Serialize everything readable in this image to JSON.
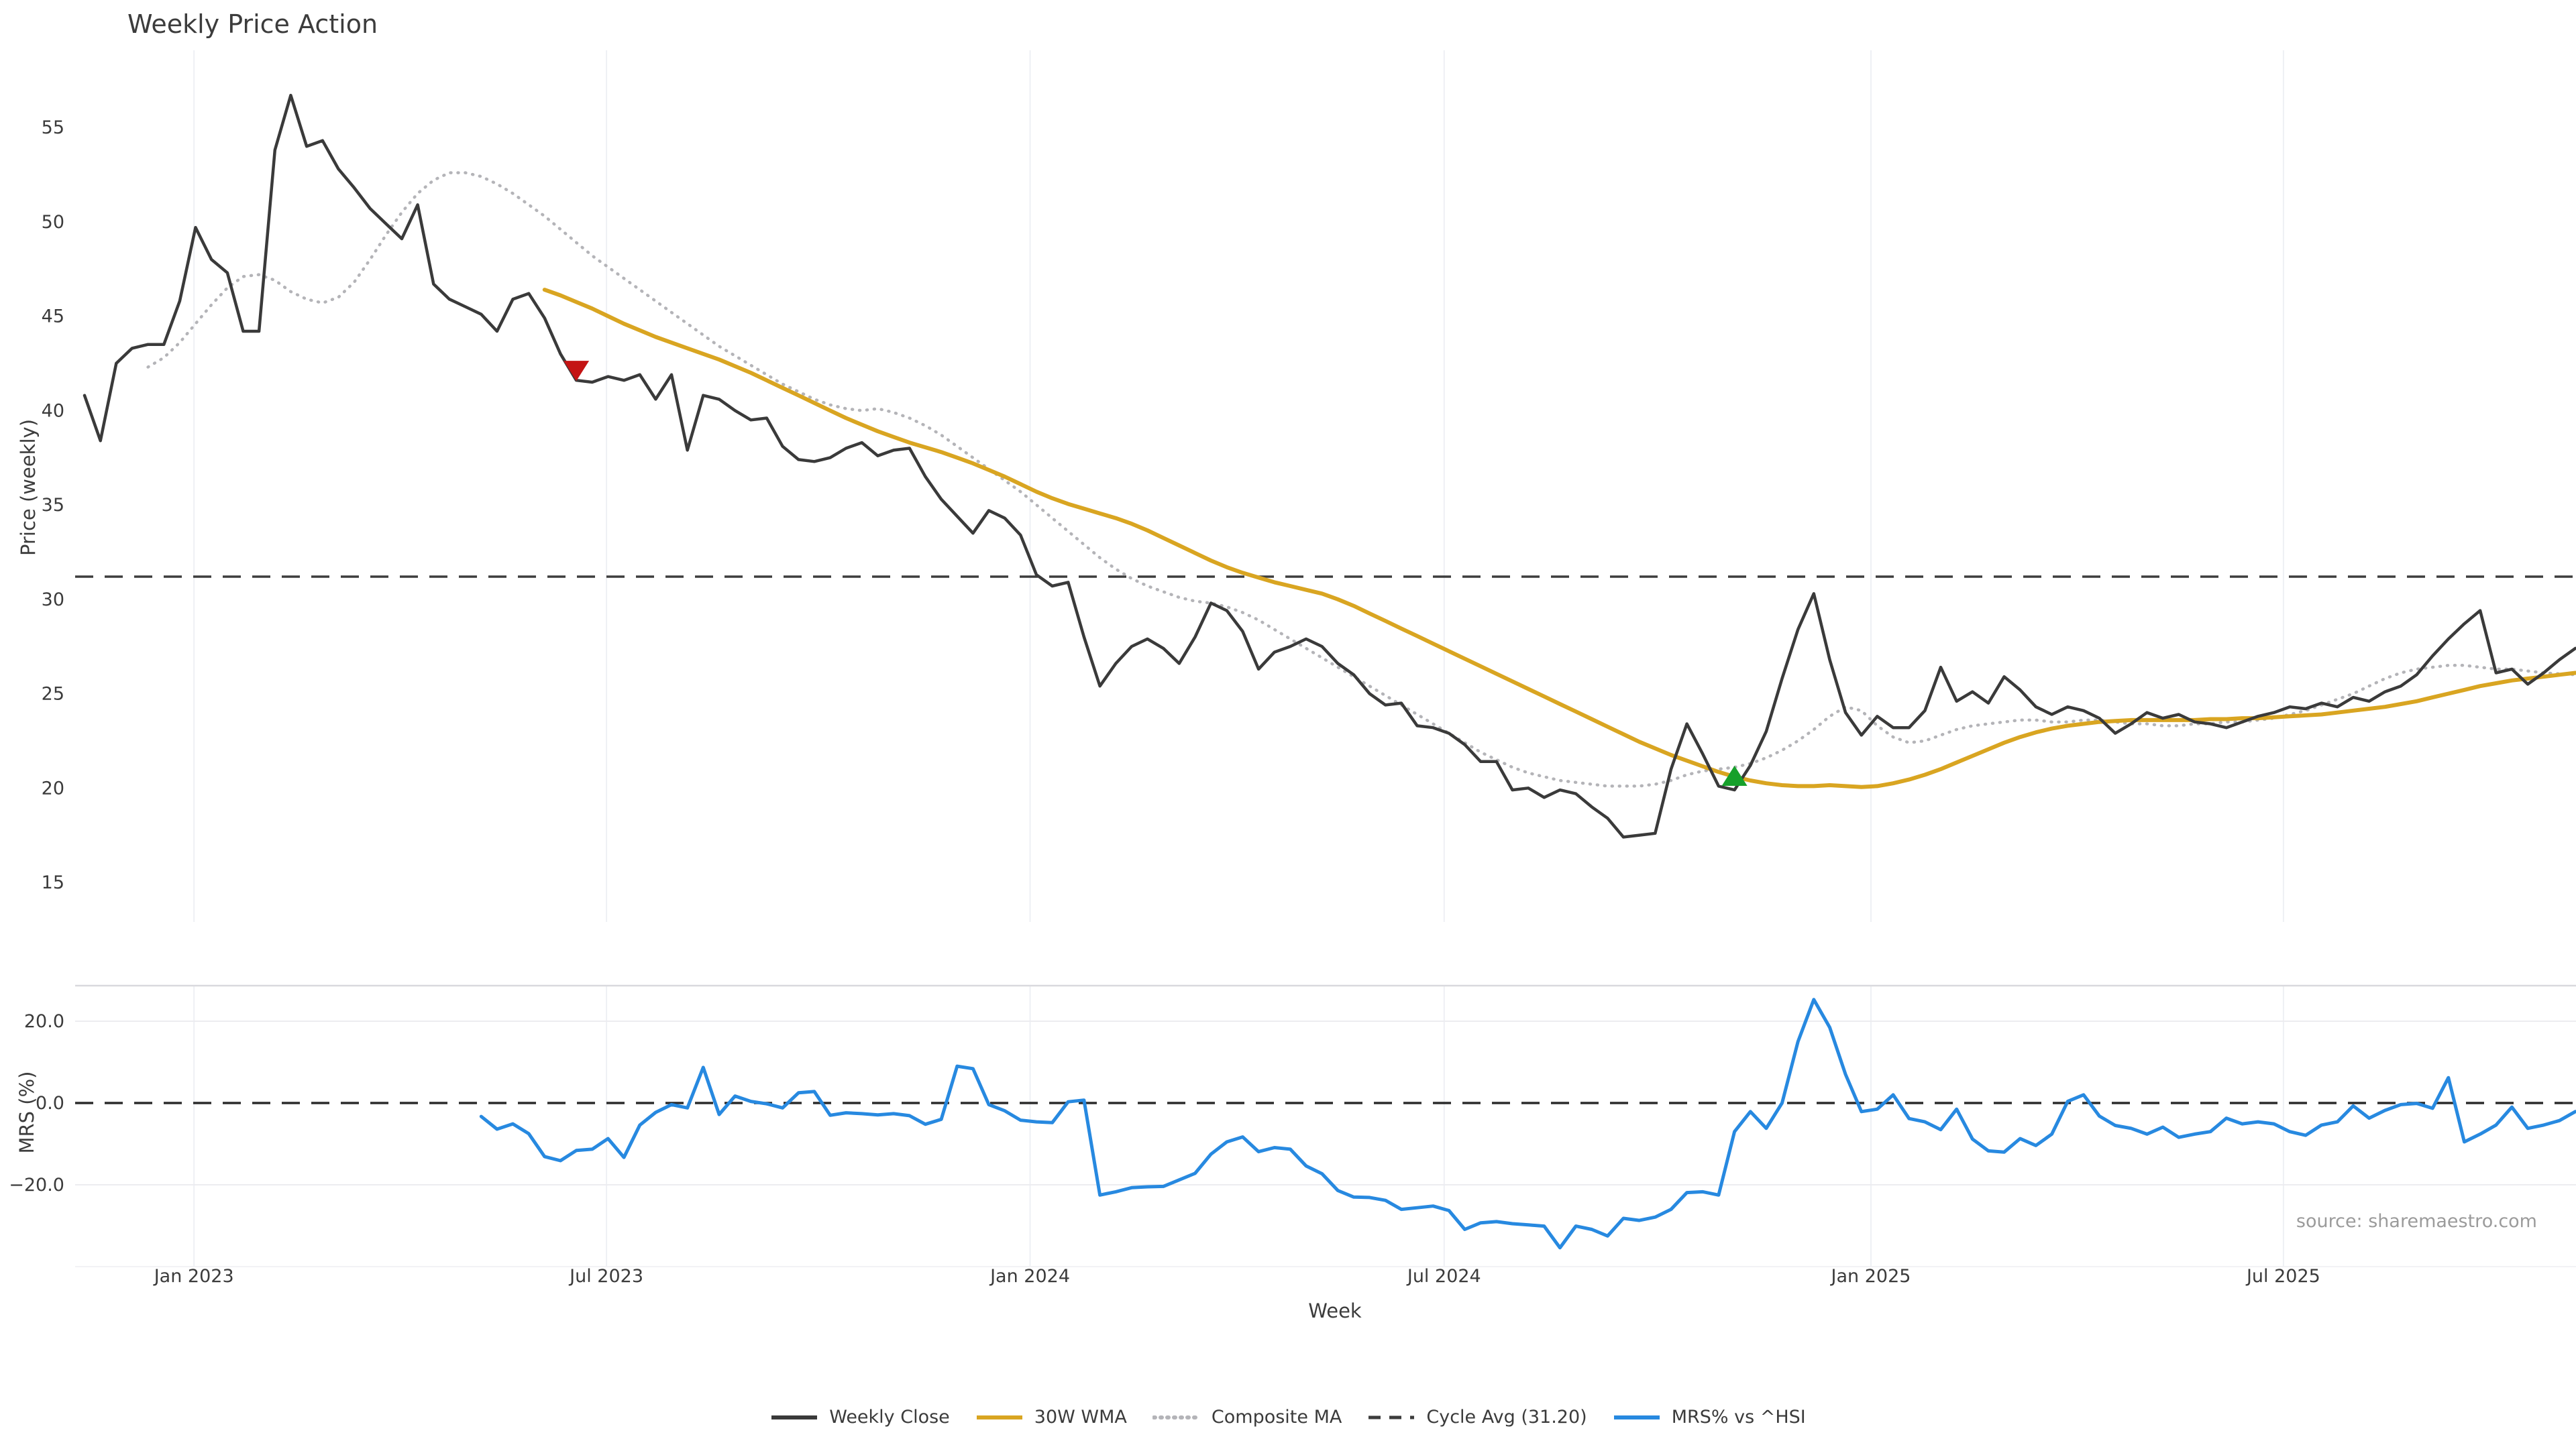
{
  "title": "Weekly Price Action",
  "source_credit": "source: sharemaestro.com",
  "axes": {
    "price": {
      "label": "Price (weekly)",
      "tick_labels": [
        "15",
        "20",
        "25",
        "30",
        "35",
        "40",
        "45",
        "50",
        "55"
      ],
      "tick_values": [
        15,
        20,
        25,
        30,
        35,
        40,
        45,
        50,
        55
      ],
      "ylim": [
        12.9,
        59.1
      ]
    },
    "mrs": {
      "label": "MRS (%)",
      "tick_labels": [
        "−20.0",
        "0.0",
        "20.0"
      ],
      "tick_values": [
        -20,
        0,
        20
      ],
      "ylim": [
        -39,
        28.5
      ]
    },
    "week": {
      "label": "Week",
      "tick_labels": [
        "Jan 2023",
        "Jul 2023",
        "Jan 2024",
        "Jul 2024",
        "Jan 2025",
        "Jul 2025"
      ],
      "tick_weeks": [
        6.9,
        32.9,
        59.6,
        85.7,
        112.6,
        138.6
      ]
    }
  },
  "legend": [
    {
      "label": "Weekly Close",
      "color": "#3a3a3a",
      "style": "solid"
    },
    {
      "label": "30W WMA",
      "color": "#d9a521",
      "style": "solid"
    },
    {
      "label": "Composite MA",
      "color": "#b4b4b8",
      "style": "dotted"
    },
    {
      "label": "Cycle Avg (31.20)",
      "color": "#3d3d3d",
      "style": "dashed"
    },
    {
      "label": "MRS% vs ^HSI",
      "color": "#2789e0",
      "style": "solid"
    }
  ],
  "chart_data": {
    "type": "line",
    "title": "Weekly Price Action",
    "x_unit": "week_index (week 0 ≈ mid-Nov 2022, 1 point per week)",
    "cycle_avg": 31.2,
    "panels": [
      {
        "id": "price",
        "ylabel": "Price (weekly)",
        "grid": "vertical-only"
      },
      {
        "id": "mrs",
        "ylabel": "MRS (%)",
        "grid": "vertical+horizontal",
        "hgrid_values": [
          20,
          -20
        ],
        "zero_line": "dashed"
      }
    ],
    "series": [
      {
        "name": "Weekly Close",
        "panel": "price",
        "color": "#3a3a3a",
        "style": "solid",
        "width": 4.5,
        "start_week": 0,
        "values": [
          40.8,
          38.4,
          42.5,
          43.3,
          43.5,
          43.5,
          45.8,
          49.7,
          48.0,
          47.3,
          44.2,
          44.2,
          53.8,
          56.7,
          54.0,
          54.3,
          52.8,
          51.8,
          50.7,
          49.9,
          49.1,
          50.9,
          46.7,
          45.9,
          45.5,
          45.1,
          44.2,
          45.9,
          46.2,
          44.9,
          43.0,
          41.6,
          41.5,
          41.8,
          41.6,
          41.9,
          40.6,
          41.9,
          37.9,
          40.8,
          40.6,
          40.0,
          39.5,
          39.6,
          38.1,
          37.4,
          37.3,
          37.5,
          38.0,
          38.3,
          37.6,
          37.9,
          38.0,
          36.5,
          35.3,
          34.4,
          33.5,
          34.7,
          34.3,
          33.4,
          31.3,
          30.7,
          30.9,
          28.0,
          25.4,
          26.6,
          27.5,
          27.9,
          27.4,
          26.6,
          28.0,
          29.8,
          29.4,
          28.3,
          26.3,
          27.2,
          27.5,
          27.9,
          27.5,
          26.6,
          26.0,
          25.0,
          24.4,
          24.5,
          23.3,
          23.2,
          22.9,
          22.3,
          21.4,
          21.4,
          19.9,
          20.0,
          19.5,
          19.9,
          19.7,
          19.0,
          18.4,
          17.4,
          17.5,
          17.6,
          21.0,
          23.4,
          21.8,
          20.1,
          19.9,
          21.2,
          23.0,
          25.8,
          28.4,
          30.3,
          26.8,
          24.0,
          22.8,
          23.8,
          23.2,
          23.2,
          24.1,
          26.4,
          24.6,
          25.1,
          24.5,
          25.9,
          25.2,
          24.3,
          23.9,
          24.3,
          24.1,
          23.7,
          22.9,
          23.4,
          24.0,
          23.7,
          23.9,
          23.5,
          23.4,
          23.2,
          23.5,
          23.8,
          24.0,
          24.3,
          24.2,
          24.5,
          24.3,
          24.8,
          24.6,
          25.1,
          25.4,
          26.0,
          27.0,
          27.9,
          28.7,
          29.4,
          26.1,
          26.3,
          25.5,
          26.1,
          26.8,
          27.4
        ]
      },
      {
        "name": "30W WMA",
        "panel": "price",
        "color": "#d9a521",
        "style": "solid",
        "width": 6,
        "start_week": 29,
        "values": [
          46.4,
          46.1,
          45.75,
          45.4,
          45.0,
          44.6,
          44.25,
          43.9,
          43.6,
          43.3,
          43.0,
          42.7,
          42.35,
          42.0,
          41.6,
          41.2,
          40.8,
          40.4,
          40.0,
          39.6,
          39.25,
          38.9,
          38.6,
          38.3,
          38.05,
          37.8,
          37.5,
          37.2,
          36.85,
          36.5,
          36.1,
          35.7,
          35.35,
          35.05,
          34.8,
          34.55,
          34.3,
          34.0,
          33.65,
          33.25,
          32.85,
          32.45,
          32.05,
          31.7,
          31.4,
          31.15,
          30.9,
          30.7,
          30.5,
          30.3,
          30.0,
          29.65,
          29.25,
          28.85,
          28.45,
          28.05,
          27.65,
          27.25,
          26.85,
          26.45,
          26.05,
          25.65,
          25.25,
          24.85,
          24.45,
          24.05,
          23.65,
          23.25,
          22.85,
          22.45,
          22.1,
          21.75,
          21.45,
          21.15,
          20.85,
          20.6,
          20.4,
          20.25,
          20.15,
          20.1,
          20.1,
          20.15,
          20.1,
          20.05,
          20.1,
          20.25,
          20.45,
          20.7,
          21.0,
          21.35,
          21.7,
          22.05,
          22.4,
          22.7,
          22.95,
          23.15,
          23.3,
          23.4,
          23.5,
          23.55,
          23.6,
          23.6,
          23.6,
          23.6,
          23.6,
          23.65,
          23.65,
          23.7,
          23.7,
          23.75,
          23.8,
          23.85,
          23.9,
          24.0,
          24.1,
          24.2,
          24.3,
          24.45,
          24.6,
          24.8,
          25.0,
          25.2,
          25.4,
          25.55,
          25.7,
          25.8,
          25.9,
          26.0,
          26.1
        ]
      },
      {
        "name": "Composite MA",
        "panel": "price",
        "color": "#b4b4b8",
        "style": "dotted",
        "width": 4.5,
        "start_week": 4,
        "values": [
          42.3,
          42.8,
          43.6,
          44.6,
          45.6,
          46.5,
          47.1,
          47.2,
          46.9,
          46.3,
          45.9,
          45.7,
          46.0,
          46.8,
          48.0,
          49.3,
          50.5,
          51.5,
          52.2,
          52.6,
          52.6,
          52.4,
          52.0,
          51.5,
          50.9,
          50.3,
          49.6,
          48.9,
          48.2,
          47.6,
          47.0,
          46.4,
          45.8,
          45.2,
          44.6,
          44.0,
          43.4,
          42.9,
          42.4,
          41.9,
          41.4,
          41.0,
          40.6,
          40.3,
          40.1,
          40.0,
          40.1,
          39.9,
          39.6,
          39.2,
          38.7,
          38.1,
          37.5,
          36.9,
          36.3,
          35.7,
          35.0,
          34.3,
          33.6,
          32.9,
          32.2,
          31.6,
          31.1,
          30.7,
          30.4,
          30.1,
          29.9,
          29.8,
          29.6,
          29.3,
          28.9,
          28.4,
          27.9,
          27.4,
          26.9,
          26.4,
          25.9,
          25.4,
          24.9,
          24.4,
          23.9,
          23.4,
          22.9,
          22.4,
          21.9,
          21.5,
          21.1,
          20.8,
          20.6,
          20.4,
          20.3,
          20.2,
          20.1,
          20.1,
          20.1,
          20.2,
          20.4,
          20.7,
          20.9,
          21.0,
          21.1,
          21.3,
          21.6,
          22.0,
          22.5,
          23.1,
          23.8,
          24.3,
          24.1,
          23.3,
          22.7,
          22.4,
          22.5,
          22.8,
          23.1,
          23.3,
          23.4,
          23.5,
          23.6,
          23.6,
          23.5,
          23.5,
          23.6,
          23.6,
          23.5,
          23.4,
          23.4,
          23.3,
          23.3,
          23.4,
          23.4,
          23.5,
          23.5,
          23.6,
          23.7,
          23.9,
          24.1,
          24.4,
          24.7,
          25.0,
          25.4,
          25.8,
          26.1,
          26.3,
          26.4,
          26.5,
          26.5,
          26.4,
          26.3,
          26.3,
          26.2,
          26.1,
          26.05,
          26.0
        ]
      },
      {
        "name": "Cycle Avg (31.20)",
        "panel": "price",
        "color": "#3d3d3d",
        "style": "dashed",
        "width": 3.5,
        "constant": 31.2
      },
      {
        "name": "MRS% vs ^HSI",
        "panel": "mrs",
        "color": "#2789e0",
        "style": "solid",
        "width": 5,
        "start_week": 25,
        "values": [
          -3.3,
          -6.4,
          -5.1,
          -7.5,
          -13.1,
          -14.1,
          -11.6,
          -11.3,
          -8.7,
          -13.3,
          -5.4,
          -2.3,
          -0.4,
          -1.2,
          8.7,
          -2.8,
          1.7,
          0.4,
          -0.2,
          -1.2,
          2.5,
          2.8,
          -3.0,
          -2.4,
          -2.6,
          -2.9,
          -2.6,
          -3.1,
          -5.2,
          -4.0,
          9.0,
          8.4,
          -0.4,
          -1.9,
          -4.2,
          -4.6,
          -4.8,
          0.3,
          0.7,
          -22.5,
          -21.7,
          -20.7,
          -20.5,
          -20.4,
          -18.8,
          -17.2,
          -12.5,
          -9.5,
          -8.3,
          -11.9,
          -10.9,
          -11.3,
          -15.4,
          -17.3,
          -21.4,
          -23.0,
          -23.1,
          -23.8,
          -26.0,
          -25.6,
          -25.2,
          -26.3,
          -30.9,
          -29.3,
          -29.0,
          -29.5,
          -29.8,
          -30.1,
          -35.4,
          -30.1,
          -30.9,
          -32.5,
          -28.2,
          -28.7,
          -27.9,
          -26.0,
          -21.9,
          -21.7,
          -22.5,
          -7.0,
          -2.1,
          -6.2,
          0.0,
          15.0,
          25.3,
          18.5,
          7.0,
          -2.1,
          -1.5,
          2.0,
          -3.8,
          -4.6,
          -6.5,
          -1.5,
          -8.8,
          -11.7,
          -12.0,
          -8.7,
          -10.4,
          -7.6,
          0.4,
          2.0,
          -3.2,
          -5.5,
          -6.2,
          -7.6,
          -5.9,
          -8.4,
          -7.6,
          -7.0,
          -3.7,
          -5.1,
          -4.6,
          -5.1,
          -7.0,
          -7.9,
          -5.4,
          -4.6,
          -0.7,
          -3.7,
          -1.8,
          -0.4,
          -0.1,
          -1.3,
          6.2,
          -9.5,
          -7.6,
          -5.4,
          -1.0,
          -6.2,
          -5.4,
          -4.3,
          -2.1
        ]
      }
    ],
    "markers": [
      {
        "name": "sell-signal",
        "shape": "triangle-down",
        "color": "#c41414",
        "week": 31,
        "value": 42.1
      },
      {
        "name": "buy-signal",
        "shape": "triangle-up",
        "color": "#16a02b",
        "week": 104,
        "value": 20.65
      }
    ]
  }
}
